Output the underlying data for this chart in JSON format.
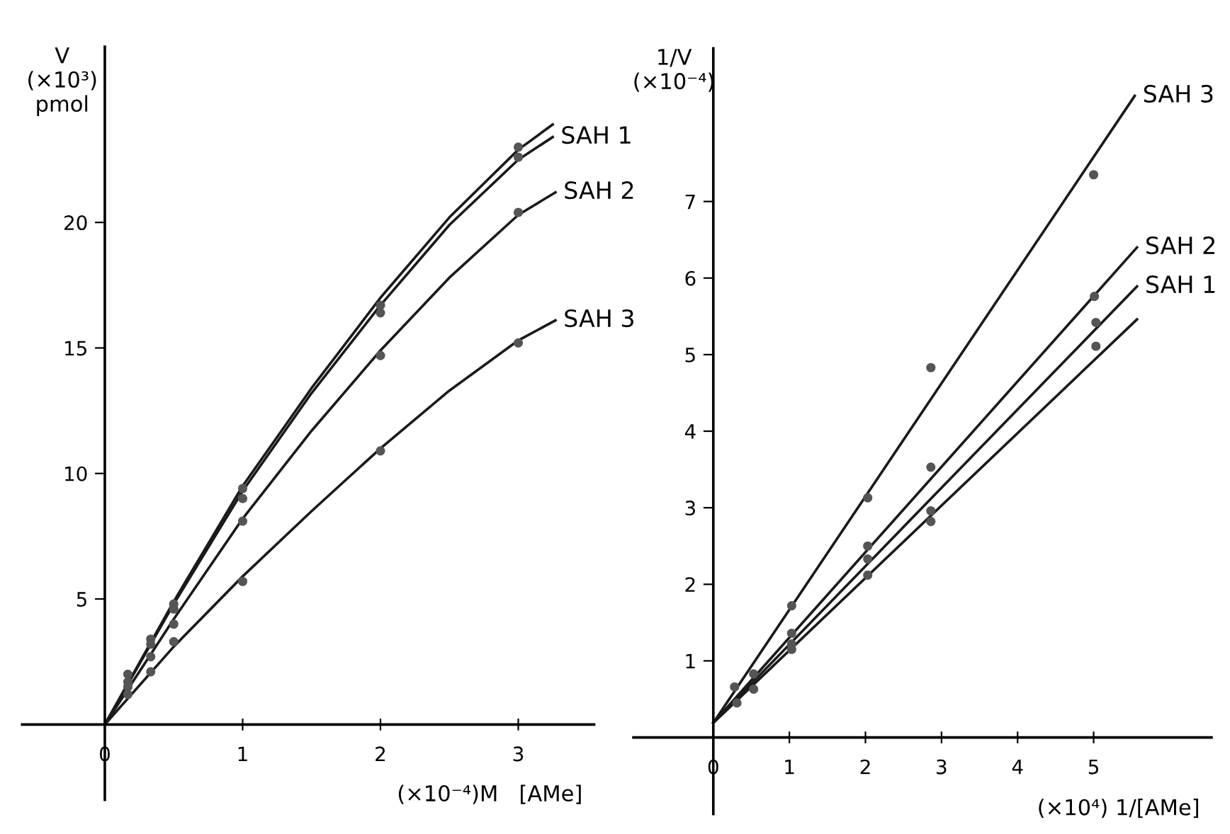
{
  "chart_data": [
    {
      "type": "line",
      "ylabel": "V\n(×10³)\npmol",
      "xlabel": "(×10⁻⁴)M   [AMe]",
      "xlim": [
        -0.6,
        3.55
      ],
      "ylim": [
        -3,
        27
      ],
      "xticks": [
        {
          "value": 0,
          "label": "0"
        },
        1,
        2,
        3
      ],
      "yticks": [
        5,
        10,
        15,
        20
      ],
      "grid": false,
      "legend": false,
      "series": [
        {
          "color": "#1a1a1a",
          "x": [
            0,
            0.5,
            1,
            1.5,
            2,
            2.5,
            3,
            3.25
          ],
          "values": [
            0,
            4.9,
            9.5,
            13.4,
            17.0,
            20.2,
            22.9,
            23.9
          ]
        },
        {
          "name": "SAH 1",
          "color": "#1a1a1a",
          "x": [
            0,
            0.5,
            1,
            1.5,
            2,
            2.5,
            3,
            3.25
          ],
          "values": [
            0,
            4.8,
            9.3,
            13.2,
            16.7,
            19.9,
            22.5,
            23.4
          ]
        },
        {
          "name": "SAH 2",
          "color": "#1a1a1a",
          "x": [
            0,
            0.5,
            1,
            1.5,
            2,
            2.5,
            3,
            3.27
          ],
          "values": [
            0,
            4.2,
            8.2,
            11.7,
            14.9,
            17.8,
            20.3,
            21.2
          ]
        },
        {
          "name": "SAH 3",
          "color": "#1a1a1a",
          "x": [
            0,
            0.5,
            1,
            1.5,
            2,
            2.5,
            3,
            3.27
          ],
          "values": [
            0,
            3.1,
            5.9,
            8.5,
            11.0,
            13.3,
            15.3,
            16.1
          ]
        },
        {
          "type": "scatter",
          "marker": "circle",
          "color": "#555555",
          "x": [
            0.167,
            0.333,
            0.5,
            1,
            2,
            3,
            0.167,
            0.333,
            0.5,
            1,
            2,
            3
          ],
          "values": [
            2.0,
            3.4,
            4.8,
            9.4,
            16.7,
            23.0,
            1.7,
            3.2,
            4.6,
            9.0,
            16.4,
            22.6
          ]
        },
        {
          "type": "scatter",
          "marker": "circle",
          "color": "#555555",
          "x": [
            0.167,
            0.333,
            0.5,
            1,
            2,
            3,
            0.167,
            0.333,
            0.5,
            1,
            2,
            3
          ],
          "values": [
            1.5,
            2.7,
            4.0,
            8.1,
            14.7,
            20.4,
            1.2,
            2.1,
            3.3,
            5.7,
            10.9,
            15.2
          ]
        }
      ]
    },
    {
      "type": "line",
      "ylabel": "1/V\n(×10⁻⁴)",
      "xlabel": "(×10⁴) 1/[AMe]",
      "xlim": [
        -1.05,
        6.55
      ],
      "ylim": [
        -1,
        9
      ],
      "xticks": [
        {
          "value": 0,
          "label": "0"
        },
        1,
        2,
        3,
        4,
        5
      ],
      "yticks": [
        1,
        2,
        3,
        4,
        5,
        6,
        7
      ],
      "grid": false,
      "legend": false,
      "series": [
        {
          "name": "SAH 3",
          "color": "#1a1a1a",
          "x": [
            0,
            5.54
          ],
          "values": [
            0.19,
            8.38
          ]
        },
        {
          "name": "SAH 2",
          "color": "#1a1a1a",
          "x": [
            0,
            5.57
          ],
          "values": [
            0.19,
            6.4
          ]
        },
        {
          "name": "SAH 1",
          "color": "#1a1a1a",
          "x": [
            0,
            5.57
          ],
          "values": [
            0.19,
            5.89
          ]
        },
        {
          "color": "#1a1a1a",
          "x": [
            0,
            5.57
          ],
          "values": [
            0.19,
            5.46
          ]
        },
        {
          "type": "scatter",
          "marker": "circle",
          "color": "#555555",
          "x": [
            1.03,
            2.03,
            2.86,
            5.0,
            2.03,
            2.86,
            5.01,
            2.03,
            2.86,
            5.03,
            2.03,
            2.86,
            5.03
          ],
          "values": [
            1.72,
            3.13,
            4.83,
            7.35,
            2.5,
            3.53,
            5.76,
            2.33,
            2.96,
            5.42,
            2.12,
            2.82,
            5.11
          ]
        },
        {
          "type": "scatter",
          "marker": "circle",
          "color": "#555555",
          "x": [
            1.03,
            1.03,
            1.03,
            0.53,
            0.53,
            0.28,
            0.31
          ],
          "values": [
            1.36,
            1.22,
            1.15,
            0.83,
            0.63,
            0.66,
            0.45
          ]
        }
      ]
    }
  ]
}
